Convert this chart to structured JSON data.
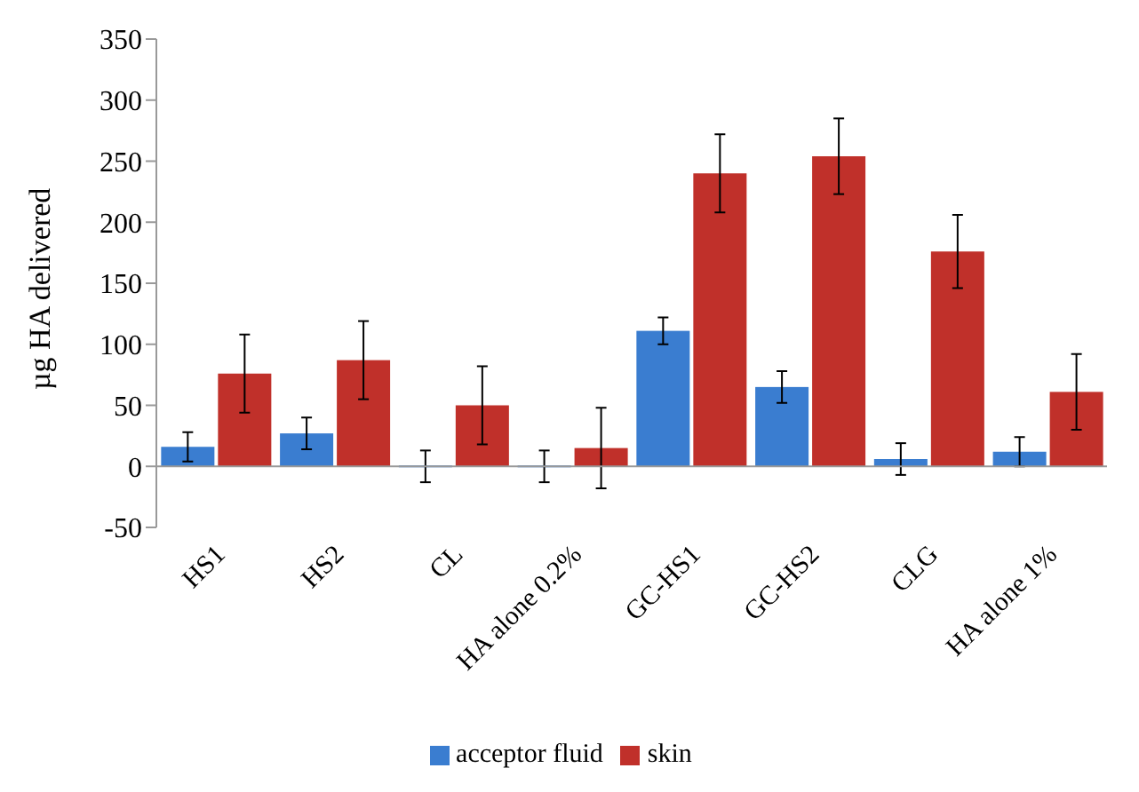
{
  "chart_data": {
    "type": "bar",
    "ylabel": "µg HA delivered",
    "categories": [
      "HS1",
      "HS2",
      "CL",
      "HA alone 0.2%",
      "GC-HS1",
      "GC-HS2",
      "CLG",
      "HA alone 1%"
    ],
    "series": [
      {
        "name": "acceptor fluid",
        "color": "#3a7dd0",
        "values": [
          16,
          27,
          0,
          0,
          111,
          65,
          6,
          12
        ],
        "errors": [
          12,
          13,
          13,
          13,
          11,
          13,
          13,
          12
        ]
      },
      {
        "name": "skin",
        "color": "#c0302a",
        "values": [
          76,
          87,
          50,
          15,
          240,
          254,
          176,
          61
        ],
        "errors": [
          32,
          32,
          32,
          33,
          32,
          31,
          30,
          31
        ]
      }
    ],
    "ylim": [
      -50,
      350
    ],
    "yticks": [
      -50,
      0,
      50,
      100,
      150,
      200,
      250,
      300,
      350
    ],
    "grid": false,
    "ref_lines": [
      {
        "axis": "y",
        "value": 0,
        "color": "#999999"
      }
    ],
    "legend": "bottom"
  }
}
